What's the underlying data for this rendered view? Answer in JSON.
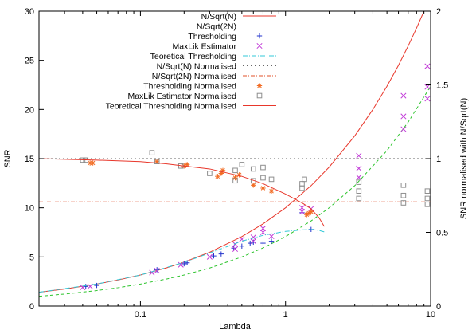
{
  "chart_data": {
    "type": "line",
    "title": "",
    "xlabel": "Lambda",
    "ylabel": "SNR",
    "y2label": "SNR normalised with N/Sqrt(N)",
    "xscale": "log",
    "xlim": [
      0.02,
      10
    ],
    "ylim": [
      0,
      30
    ],
    "y2lim": [
      0,
      2
    ],
    "legend_position": "top-center",
    "grid": false,
    "xticks": [
      {
        "v": 0.1,
        "label": "0.1"
      },
      {
        "v": 1,
        "label": "1"
      },
      {
        "v": 10,
        "label": "10"
      }
    ],
    "yticks": [
      {
        "v": 0,
        "label": "0"
      },
      {
        "v": 5,
        "label": "5"
      },
      {
        "v": 10,
        "label": "10"
      },
      {
        "v": 15,
        "label": "15"
      },
      {
        "v": 20,
        "label": "20"
      },
      {
        "v": 25,
        "label": "25"
      },
      {
        "v": 30,
        "label": "30"
      }
    ],
    "y2ticks": [
      {
        "v": 0,
        "label": "0"
      },
      {
        "v": 0.5,
        "label": "0.5"
      },
      {
        "v": 1,
        "label": "1"
      },
      {
        "v": 1.5,
        "label": "1.5"
      },
      {
        "v": 2,
        "label": "2"
      }
    ],
    "series": [
      {
        "name": "N/Sqrt(N)",
        "kind": "line",
        "axis": "y",
        "color": "#e8372b",
        "dash": "",
        "points": [
          [
            0.02,
            1.41
          ],
          [
            0.03,
            1.73
          ],
          [
            0.05,
            2.24
          ],
          [
            0.07,
            2.65
          ],
          [
            0.1,
            3.16
          ],
          [
            0.15,
            3.87
          ],
          [
            0.2,
            4.47
          ],
          [
            0.3,
            5.48
          ],
          [
            0.5,
            7.07
          ],
          [
            0.7,
            8.37
          ],
          [
            1,
            10
          ],
          [
            1.5,
            12.25
          ],
          [
            2,
            14.14
          ],
          [
            3,
            17.32
          ],
          [
            4,
            20
          ],
          [
            5,
            22.36
          ],
          [
            6,
            24.49
          ],
          [
            7,
            26.46
          ],
          [
            8,
            28.28
          ],
          [
            9,
            30
          ]
        ]
      },
      {
        "name": "N/Sqrt(2N)",
        "kind": "line",
        "axis": "y",
        "color": "#2ec42e",
        "dash": "4,3",
        "points": [
          [
            0.02,
            1.0
          ],
          [
            0.03,
            1.22
          ],
          [
            0.05,
            1.58
          ],
          [
            0.07,
            1.87
          ],
          [
            0.1,
            2.24
          ],
          [
            0.15,
            2.74
          ],
          [
            0.2,
            3.16
          ],
          [
            0.3,
            3.87
          ],
          [
            0.5,
            5.0
          ],
          [
            0.7,
            5.92
          ],
          [
            1,
            7.07
          ],
          [
            1.5,
            8.66
          ],
          [
            2,
            10
          ],
          [
            3,
            12.25
          ],
          [
            5,
            15.81
          ],
          [
            7,
            18.71
          ],
          [
            10,
            22.36
          ]
        ]
      },
      {
        "name": "Thresholding",
        "kind": "scatter",
        "axis": "y",
        "color": "#2233cc",
        "marker": "plus",
        "points": [
          [
            0.042,
            2.0
          ],
          [
            0.05,
            2.1
          ],
          [
            0.13,
            3.7
          ],
          [
            0.2,
            4.3
          ],
          [
            0.21,
            4.4
          ],
          [
            0.32,
            5.1
          ],
          [
            0.36,
            5.3
          ],
          [
            0.44,
            5.9
          ],
          [
            0.5,
            6.1
          ],
          [
            0.57,
            6.4
          ],
          [
            0.6,
            6.5
          ],
          [
            0.7,
            6.4
          ],
          [
            0.8,
            6.6
          ],
          [
            1.3,
            9.5
          ],
          [
            1.5,
            7.8
          ]
        ]
      },
      {
        "name": "MaxLik Estimator",
        "kind": "scatter",
        "axis": "y",
        "color": "#c23cd8",
        "marker": "x",
        "points": [
          [
            0.04,
            1.9
          ],
          [
            0.045,
            2.0
          ],
          [
            0.12,
            3.4
          ],
          [
            0.13,
            3.6
          ],
          [
            0.19,
            4.2
          ],
          [
            0.3,
            5.0
          ],
          [
            0.45,
            5.8
          ],
          [
            0.45,
            6.3
          ],
          [
            0.5,
            6.8
          ],
          [
            0.6,
            6.6
          ],
          [
            0.6,
            7.0
          ],
          [
            0.7,
            7.5
          ],
          [
            0.7,
            7.9
          ],
          [
            0.8,
            7.1
          ],
          [
            1.3,
            9.6
          ],
          [
            1.3,
            10.0
          ],
          [
            1.5,
            9.9
          ],
          [
            3.2,
            13.1
          ],
          [
            3.2,
            14.0
          ],
          [
            3.2,
            15.3
          ],
          [
            6.5,
            18.0
          ],
          [
            6.5,
            19.3
          ],
          [
            6.5,
            21.4
          ],
          [
            9.5,
            21.1
          ],
          [
            9.5,
            22.3
          ],
          [
            9.5,
            24.4
          ]
        ]
      },
      {
        "name": "Teoretical Thresholding",
        "kind": "line",
        "axis": "y",
        "color": "#33c9d8",
        "dash": "6,2,1,2",
        "points": [
          [
            0.02,
            1.41
          ],
          [
            0.05,
            2.24
          ],
          [
            0.1,
            3.16
          ],
          [
            0.2,
            4.45
          ],
          [
            0.3,
            5.4
          ],
          [
            0.5,
            6.6
          ],
          [
            0.7,
            7.2
          ],
          [
            1.0,
            7.6
          ],
          [
            1.3,
            7.75
          ],
          [
            1.5,
            7.8
          ],
          [
            1.7,
            7.7
          ],
          [
            1.9,
            7.5
          ]
        ]
      },
      {
        "name": "N/Sqrt(N) Normalised",
        "kind": "line",
        "axis": "y2",
        "color": "#666666",
        "dash": "2,3",
        "points": [
          [
            0.02,
            1.0
          ],
          [
            10,
            1.0
          ]
        ]
      },
      {
        "name": "N/Sqrt(2N) Normalised",
        "kind": "line",
        "axis": "y2",
        "color": "#e0502a",
        "dash": "5,2,1,2",
        "points": [
          [
            0.02,
            0.707
          ],
          [
            10,
            0.707
          ]
        ]
      },
      {
        "name": "Thresholding Normalised",
        "kind": "scatter",
        "axis": "y2",
        "color": "#f26b22",
        "marker": "star",
        "points": [
          [
            0.045,
            0.97
          ],
          [
            0.047,
            0.97
          ],
          [
            0.13,
            0.98
          ],
          [
            0.2,
            0.95
          ],
          [
            0.21,
            0.96
          ],
          [
            0.34,
            0.88
          ],
          [
            0.36,
            0.9
          ],
          [
            0.37,
            0.92
          ],
          [
            0.45,
            0.87
          ],
          [
            0.48,
            0.89
          ],
          [
            0.6,
            0.82
          ],
          [
            0.7,
            0.8
          ],
          [
            0.8,
            0.78
          ],
          [
            1.4,
            0.62
          ],
          [
            1.45,
            0.63
          ],
          [
            1.5,
            0.64
          ]
        ]
      },
      {
        "name": "MaxLik Estimator Normalised",
        "kind": "scatter",
        "axis": "y2",
        "color": "#8e8e8e",
        "marker": "square",
        "points": [
          [
            0.04,
            0.99
          ],
          [
            0.042,
            0.99
          ],
          [
            0.12,
            1.04
          ],
          [
            0.13,
            0.98
          ],
          [
            0.19,
            0.95
          ],
          [
            0.3,
            0.9
          ],
          [
            0.45,
            0.85
          ],
          [
            0.45,
            0.92
          ],
          [
            0.5,
            0.96
          ],
          [
            0.6,
            0.85
          ],
          [
            0.6,
            0.93
          ],
          [
            0.7,
            0.94
          ],
          [
            0.7,
            0.87
          ],
          [
            0.8,
            0.86
          ],
          [
            1.3,
            0.8
          ],
          [
            1.3,
            0.83
          ],
          [
            1.35,
            0.86
          ],
          [
            3.2,
            0.73
          ],
          [
            3.2,
            0.78
          ],
          [
            3.2,
            0.84
          ],
          [
            6.5,
            0.7
          ],
          [
            6.5,
            0.75
          ],
          [
            6.5,
            0.82
          ],
          [
            9.5,
            0.69
          ],
          [
            9.5,
            0.73
          ],
          [
            9.5,
            0.78
          ]
        ]
      },
      {
        "name": "Teoretical Thresholding Normalised",
        "kind": "line",
        "axis": "y2",
        "color": "#e8372b",
        "dash": "",
        "points": [
          [
            0.02,
            1.0
          ],
          [
            0.05,
            0.99
          ],
          [
            0.1,
            0.98
          ],
          [
            0.15,
            0.965
          ],
          [
            0.2,
            0.95
          ],
          [
            0.3,
            0.93
          ],
          [
            0.5,
            0.88
          ],
          [
            0.7,
            0.83
          ],
          [
            1.0,
            0.76
          ],
          [
            1.3,
            0.7
          ],
          [
            1.5,
            0.66
          ],
          [
            1.7,
            0.6
          ],
          [
            1.85,
            0.54
          ]
        ]
      }
    ],
    "legend": [
      {
        "label": "N/Sqrt(N)",
        "color": "#e8372b",
        "sample": "line",
        "dash": ""
      },
      {
        "label": "N/Sqrt(2N)",
        "color": "#2ec42e",
        "sample": "line",
        "dash": "4,3"
      },
      {
        "label": "Thresholding",
        "color": "#2233cc",
        "sample": "plus"
      },
      {
        "label": "MaxLik Estimator",
        "color": "#c23cd8",
        "sample": "x"
      },
      {
        "label": "Teoretical Thresholding",
        "color": "#33c9d8",
        "sample": "line",
        "dash": "6,2,1,2"
      },
      {
        "label": "N/Sqrt(N) Normalised",
        "color": "#666666",
        "sample": "line",
        "dash": "2,3"
      },
      {
        "label": "N/Sqrt(2N) Normalised",
        "color": "#e0502a",
        "sample": "line",
        "dash": "5,2,1,2"
      },
      {
        "label": "Thresholding Normalised",
        "color": "#f26b22",
        "sample": "star"
      },
      {
        "label": "MaxLik Estimator        Normalised",
        "color": "#8e8e8e",
        "sample": "square"
      },
      {
        "label": "Teoretical Thresholding Normalised",
        "color": "#e8372b",
        "sample": "line",
        "dash": ""
      }
    ]
  }
}
